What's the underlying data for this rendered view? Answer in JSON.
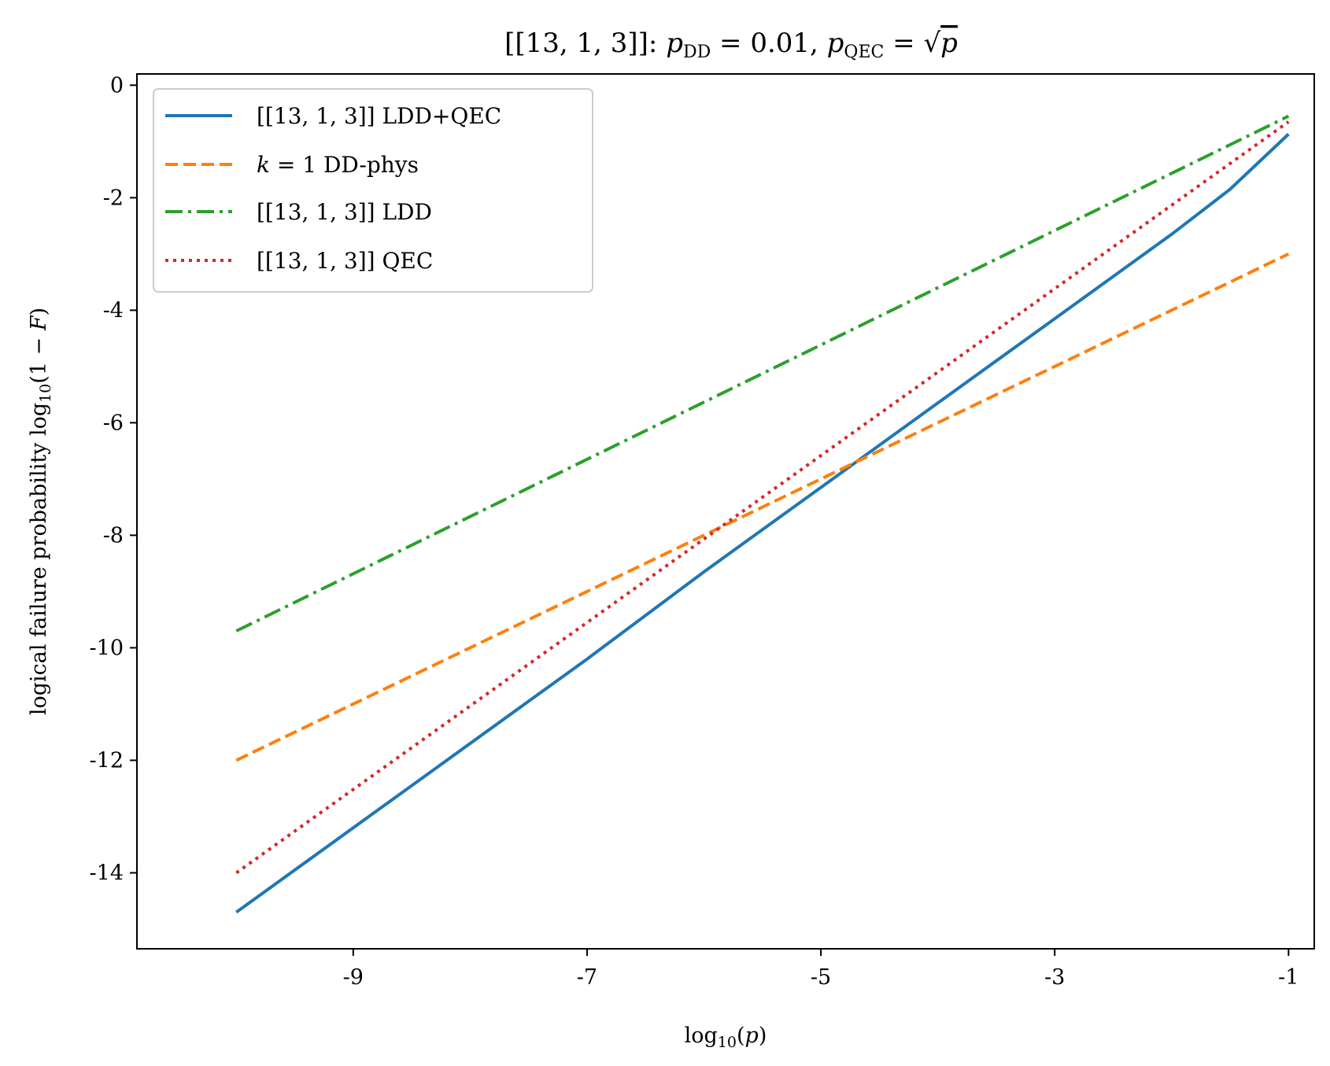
{
  "chart_data": {
    "type": "line",
    "title": {
      "prefix": "[[13, 1, 3]]: ",
      "p1": "p",
      "p1_sub": "DD",
      "eq1": " = 0.01, ",
      "p2": "p",
      "p2_sub": "QEC",
      "eq2": " = √",
      "p3": "p"
    },
    "xlabel": {
      "main": "log",
      "sub": "10",
      "arg_open": "(",
      "arg": "p",
      "arg_close": ")"
    },
    "ylabel": {
      "main": "logical failure probability log",
      "sub": "10",
      "arg_open": "(1 − ",
      "arg": "F",
      "arg_close": ")"
    },
    "xlim": [
      -10.85,
      -0.78
    ],
    "ylim": [
      -15.35,
      0.2
    ],
    "x_ticks": [
      {
        "value": -9,
        "label": "-9"
      },
      {
        "value": -7,
        "label": "-7"
      },
      {
        "value": -5,
        "label": "-5"
      },
      {
        "value": -3,
        "label": "-3"
      },
      {
        "value": -1,
        "label": "-1"
      }
    ],
    "y_ticks": [
      {
        "value": 0,
        "label": "0"
      },
      {
        "value": -2,
        "label": "-2"
      },
      {
        "value": -4,
        "label": "-4"
      },
      {
        "value": -6,
        "label": "-6"
      },
      {
        "value": -8,
        "label": "-8"
      },
      {
        "value": -10,
        "label": "-10"
      },
      {
        "value": -12,
        "label": "-12"
      },
      {
        "value": -14,
        "label": "-14"
      }
    ],
    "legend_position": "upper-left",
    "series": [
      {
        "name": "[[13, 1, 3]] LDD+QEC",
        "legend": {
          "text": "[[13, 1, 3]] LDD+QEC"
        },
        "color": "#1f77b4",
        "style": "solid",
        "x": [
          -10,
          -9,
          -8,
          -7,
          -6,
          -5,
          -4,
          -3,
          -2,
          -1.5,
          -1
        ],
        "y": [
          -14.7,
          -13.2,
          -11.7,
          -10.2,
          -8.65,
          -7.15,
          -5.65,
          -4.15,
          -2.65,
          -1.85,
          -0.87
        ]
      },
      {
        "name": "k = 1 DD-phys",
        "legend": {
          "ital": "k",
          "text": " = 1 DD-phys"
        },
        "color": "#ff7f0e",
        "style": "dashed",
        "x": [
          -10,
          -1
        ],
        "y": [
          -12,
          -3
        ]
      },
      {
        "name": "[[13, 1, 3]] LDD",
        "legend": {
          "text": "[[13, 1, 3]] LDD"
        },
        "color": "#2ca02c",
        "style": "dashdot",
        "x": [
          -10,
          -1
        ],
        "y": [
          -9.7,
          -0.55
        ]
      },
      {
        "name": "[[13, 1, 3]] QEC",
        "legend": {
          "text": "[[13, 1, 3]] QEC"
        },
        "color": "#d62728",
        "style": "dotted",
        "x": [
          -10,
          -1
        ],
        "y": [
          -14,
          -0.65
        ]
      }
    ]
  }
}
